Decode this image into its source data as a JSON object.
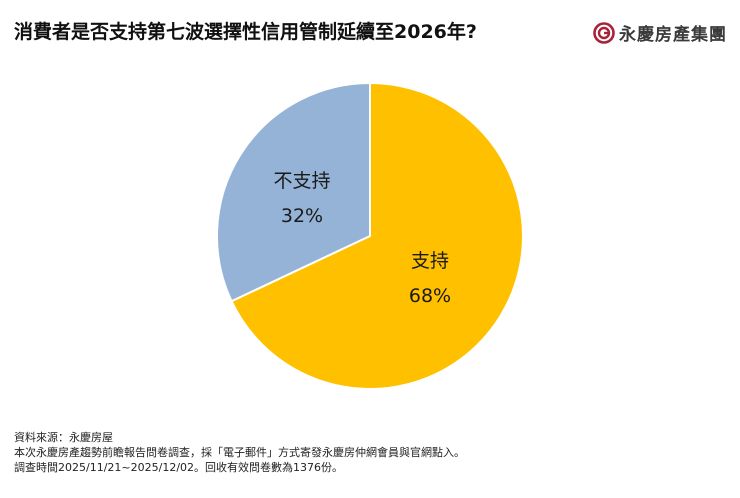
{
  "header": {
    "title": "消費者是否支持第七波選擇性信用管制延續至2026年?",
    "logo_text": "永慶房產集團",
    "logo_icon": "yungching-logo-icon",
    "logo_color": "#a8233a"
  },
  "chart_data": {
    "type": "pie",
    "title": "消費者是否支持第七波選擇性信用管制延續至2026年?",
    "categories": [
      "支持",
      "不支持"
    ],
    "values": [
      68,
      32
    ],
    "unit": "%",
    "colors": [
      "#FFC000",
      "#95B3D7"
    ],
    "labels": [
      {
        "name": "支持",
        "value": "68%"
      },
      {
        "name": "不支持",
        "value": "32%"
      }
    ],
    "start_angle": "12 o'clock, clockwise",
    "legend": "none (inline data labels)"
  },
  "footer": {
    "source": "資料來源：永慶房屋",
    "note1": "本次永慶房產趨勢前瞻報告問卷調查，採「電子郵件」方式寄發永慶房仲網會員與官網點入。",
    "note2": "調查時間2025/11/21~2025/12/02。回收有效問卷數為1376份。"
  }
}
